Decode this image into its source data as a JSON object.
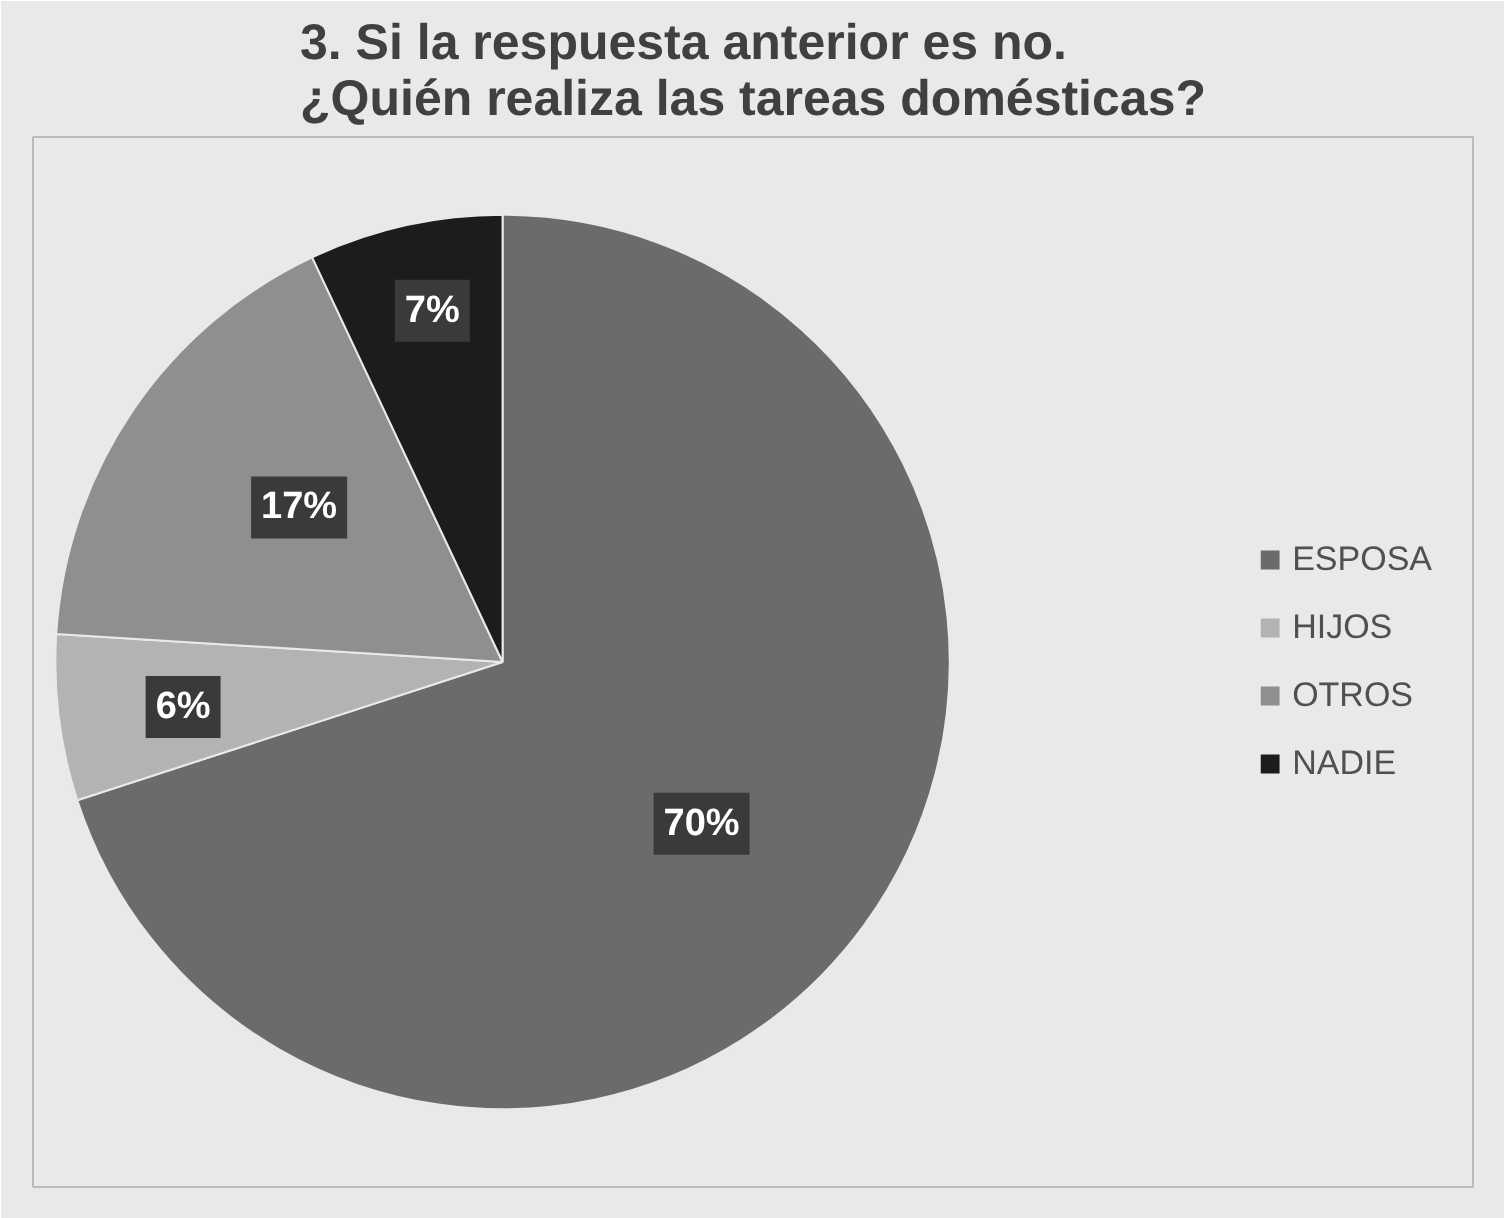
{
  "chart_data": {
    "type": "pie",
    "title": "3. Si la respuesta anterior es no.\n¿Quién realiza las tareas domésticas?",
    "categories": [
      "ESPOSA",
      "HIJOS",
      "OTROS",
      "NADIE"
    ],
    "values": [
      70,
      6,
      17,
      7
    ],
    "colors": [
      "#6b6b6b",
      "#b3b3b3",
      "#8f8f8f",
      "#1c1c1c"
    ],
    "value_labels": [
      "70%",
      "6%",
      "17%",
      "7%"
    ],
    "legend": "right"
  }
}
